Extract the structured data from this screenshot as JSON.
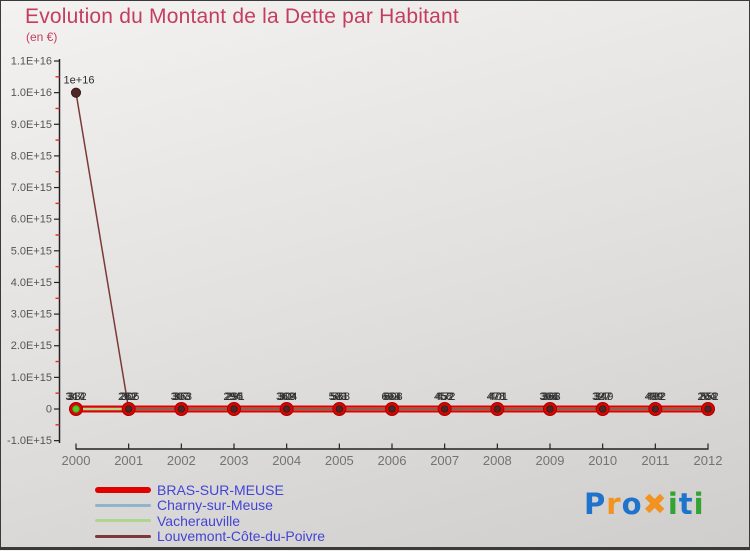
{
  "colors": {
    "title": "#c43d5f",
    "legend_text": "#4444d4",
    "y_axis_text": "#555555",
    "x_axis_text": "#737373",
    "axis_line": "#222222",
    "minor_tick": "#e03020",
    "point_label": "#2e2e2e",
    "background_top": "#f3f2f0",
    "background_bottom": "#cfcecc"
  },
  "chart_data": {
    "type": "line",
    "title": "Evolution du Montant de la Dette par Habitant",
    "subtitle": "(en €)",
    "x": [
      2000,
      2001,
      2002,
      2003,
      2004,
      2005,
      2006,
      2007,
      2008,
      2009,
      2010,
      2011,
      2012
    ],
    "x_tick_labels": [
      "2000",
      "2001",
      "2002",
      "2003",
      "2004",
      "2005",
      "2006",
      "2007",
      "2008",
      "2009",
      "2010",
      "2011",
      "2012"
    ],
    "y_axis": {
      "min": -1000000000000000.0,
      "max": 1.1e+16,
      "major_step": 1000000000000000.0,
      "tick_labels": [
        "1.1E+16",
        "1.0E+16",
        "9.0E+15",
        "8.0E+15",
        "7.0E+15",
        "6.0E+15",
        "5.0E+15",
        "4.0E+15",
        "3.0E+15",
        "2.0E+15",
        "1.0E+15",
        "0",
        "-1.0E+15"
      ],
      "minor_step": 500000000000000.0
    },
    "grid": false,
    "legend_position": "bottom-left",
    "note": "Three near-zero series have overlapping value labels above each point; Louvemont-Côte-du-Poivre spikes to 1e+16 in 2000 (labeled '1e+16') then stays at 0.",
    "series": [
      {
        "name": "BRAS-SUR-MEUSE",
        "color": "#e10000",
        "line_width": 7,
        "marker_color": "#e10000",
        "marker_stroke": "#a50000",
        "marker_r": 6.5,
        "label_dx": -1.5,
        "values": [
          347,
          282,
          307,
          294,
          362,
          503,
          603,
          458,
          478,
          308,
          327,
          499,
          204
        ],
        "labels": [
          "347",
          "282",
          "307",
          "294",
          "362",
          "503",
          "603",
          "458",
          "478",
          "308",
          "327",
          "499",
          "204"
        ]
      },
      {
        "name": "Charny-sur-Meuse",
        "color": "#8fb4cc",
        "line_width": 2.2,
        "marker_color": "#7da9c7",
        "marker_stroke": "#5e8dad",
        "marker_r": 3.3,
        "label_dx": 1.5,
        "values": [
          332,
          306,
          363,
          291,
          304,
          568,
          608,
          472,
          401,
          368,
          349,
          402,
          552
        ],
        "labels": [
          "332",
          "306",
          "363",
          "291",
          "304",
          "568",
          "608",
          "472",
          "401",
          "368",
          "349",
          "402",
          "552"
        ]
      },
      {
        "name": "Vacherauville",
        "color": "#aed68e",
        "line_width": 2.6,
        "marker_color": "#4ed022",
        "marker_stroke": "#36a512",
        "marker_r": 3.3,
        "label_dx": 0,
        "values": [
          314,
          262,
          303,
          295,
          309,
          581,
          664,
          452,
          471,
          366,
          347,
          492,
          263
        ],
        "labels": [
          "314",
          "262",
          "303",
          "295",
          "309",
          "581",
          "664",
          "452",
          "471",
          "366",
          "347",
          "492",
          "263"
        ]
      },
      {
        "name": "Louvemont-Côte-du-Poivre",
        "color": "#7b3a3a",
        "line_width": 1.5,
        "marker_color": "#512626",
        "marker_stroke": "#361717",
        "marker_r": 3.3,
        "label_dx": 3,
        "values": [
          1e+16,
          0,
          0,
          0,
          0,
          0,
          0,
          0,
          0,
          0,
          0,
          0,
          0
        ],
        "labels": [
          "1e+16",
          "",
          "",
          "",
          "",
          "",
          "",
          "",
          "",
          "",
          "",
          "",
          ""
        ]
      }
    ]
  },
  "legend": {
    "items": [
      {
        "label": "BRAS-SUR-MEUSE",
        "color": "#e10000",
        "thick": true
      },
      {
        "label": "Charny-sur-Meuse",
        "color": "#8fb4cc",
        "thick": false
      },
      {
        "label": "Vacherauville",
        "color": "#aed68e",
        "thick": false
      },
      {
        "label": "Louvemont-Côte-du-Poivre",
        "color": "#7b3a3a",
        "thick": false
      }
    ]
  },
  "logo": {
    "name": "Proxiti",
    "letters": [
      {
        "ch": "P",
        "color": "#1e74cc"
      },
      {
        "ch": "r",
        "color": "#f29221"
      },
      {
        "ch": "o",
        "color": "#1e74cc"
      },
      {
        "ch": "✖",
        "color": "#f29221"
      },
      {
        "ch": "i",
        "color": "#33a433"
      },
      {
        "ch": "t",
        "color": "#1e74cc"
      },
      {
        "ch": "i",
        "color": "#33a433"
      }
    ]
  }
}
